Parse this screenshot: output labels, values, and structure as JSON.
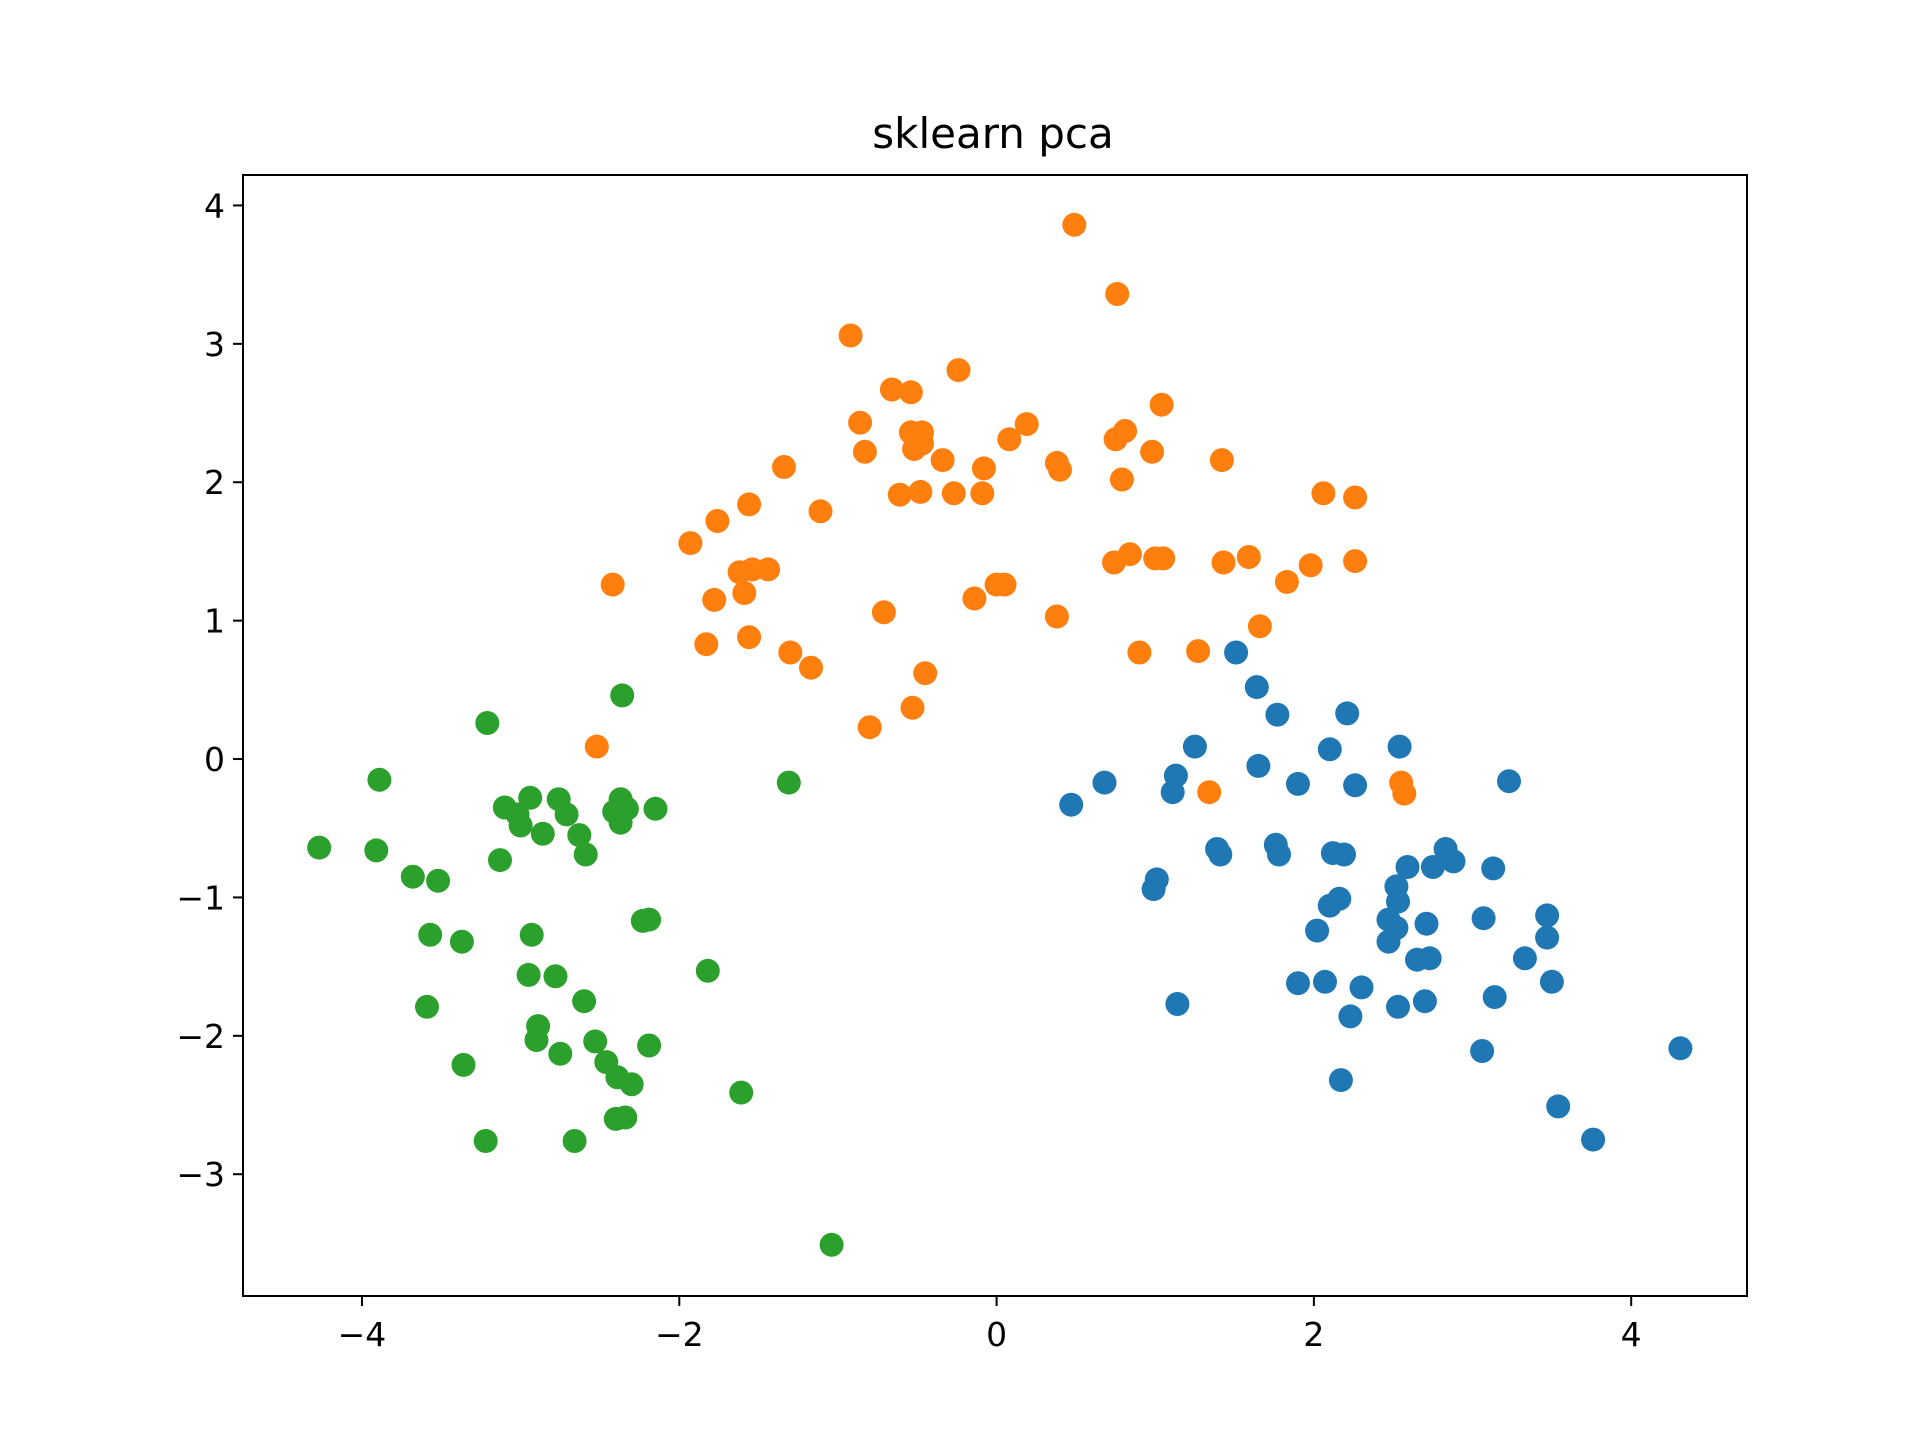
{
  "chart_data": {
    "type": "scatter",
    "title": "sklearn pca",
    "xlabel": "",
    "ylabel": "",
    "xlim": [
      -4.75,
      4.73
    ],
    "ylim": [
      -3.88,
      4.22
    ],
    "grid": false,
    "x_ticks": [
      -4,
      -2,
      0,
      2,
      4
    ],
    "y_ticks": [
      -3,
      -2,
      -1,
      0,
      1,
      2,
      3,
      4
    ],
    "x_tick_labels": [
      "−4",
      "−2",
      "0",
      "2",
      "4"
    ],
    "y_tick_labels": [
      "−3",
      "−2",
      "−1",
      "0",
      "1",
      "2",
      "3",
      "4"
    ],
    "series": [
      {
        "color": "#1f77b4",
        "points": [
          [
            1.51,
            0.77
          ],
          [
            1.64,
            0.52
          ],
          [
            1.77,
            0.32
          ],
          [
            2.21,
            0.33
          ],
          [
            2.54,
            0.09
          ],
          [
            2.1,
            0.07
          ],
          [
            1.25,
            0.09
          ],
          [
            1.65,
            -0.05
          ],
          [
            1.13,
            -0.12
          ],
          [
            1.9,
            -0.18
          ],
          [
            2.26,
            -0.19
          ],
          [
            3.23,
            -0.16
          ],
          [
            0.68,
            -0.17
          ],
          [
            1.11,
            -0.24
          ],
          [
            0.47,
            -0.33
          ],
          [
            1.39,
            -0.65
          ],
          [
            1.41,
            -0.69
          ],
          [
            1.76,
            -0.62
          ],
          [
            1.78,
            -0.69
          ],
          [
            2.12,
            -0.68
          ],
          [
            2.19,
            -0.69
          ],
          [
            2.59,
            -0.78
          ],
          [
            2.75,
            -0.78
          ],
          [
            2.83,
            -0.65
          ],
          [
            2.88,
            -0.74
          ],
          [
            3.13,
            -0.79
          ],
          [
            1.01,
            -0.87
          ],
          [
            0.99,
            -0.94
          ],
          [
            2.52,
            -0.92
          ],
          [
            2.53,
            -1.03
          ],
          [
            2.16,
            -1.01
          ],
          [
            2.1,
            -1.06
          ],
          [
            2.47,
            -1.16
          ],
          [
            2.52,
            -1.22
          ],
          [
            2.47,
            -1.32
          ],
          [
            2.71,
            -1.19
          ],
          [
            3.07,
            -1.15
          ],
          [
            3.47,
            -1.13
          ],
          [
            3.47,
            -1.29
          ],
          [
            2.02,
            -1.24
          ],
          [
            2.65,
            -1.45
          ],
          [
            2.73,
            -1.44
          ],
          [
            3.33,
            -1.44
          ],
          [
            1.9,
            -1.62
          ],
          [
            2.07,
            -1.61
          ],
          [
            2.3,
            -1.65
          ],
          [
            2.23,
            -1.86
          ],
          [
            2.53,
            -1.79
          ],
          [
            2.7,
            -1.75
          ],
          [
            3.14,
            -1.72
          ],
          [
            3.5,
            -1.61
          ],
          [
            1.14,
            -1.77
          ],
          [
            3.06,
            -2.11
          ],
          [
            2.17,
            -2.32
          ],
          [
            4.31,
            -2.09
          ],
          [
            3.54,
            -2.51
          ],
          [
            3.76,
            -2.75
          ]
        ]
      },
      {
        "color": "#ff7f0e",
        "points": [
          [
            0.49,
            3.86
          ],
          [
            0.76,
            3.36
          ],
          [
            -0.92,
            3.06
          ],
          [
            -0.24,
            2.81
          ],
          [
            -0.66,
            2.67
          ],
          [
            -0.54,
            2.65
          ],
          [
            1.04,
            2.56
          ],
          [
            -0.86,
            2.43
          ],
          [
            0.19,
            2.42
          ],
          [
            -0.54,
            2.36
          ],
          [
            -0.47,
            2.36
          ],
          [
            0.81,
            2.37
          ],
          [
            0.75,
            2.31
          ],
          [
            -0.47,
            2.28
          ],
          [
            -0.52,
            2.24
          ],
          [
            0.08,
            2.31
          ],
          [
            -0.83,
            2.22
          ],
          [
            0.98,
            2.22
          ],
          [
            -0.34,
            2.16
          ],
          [
            0.38,
            2.14
          ],
          [
            1.42,
            2.16
          ],
          [
            -0.08,
            2.1
          ],
          [
            -1.34,
            2.11
          ],
          [
            0.4,
            2.09
          ],
          [
            0.79,
            2.02
          ],
          [
            -0.61,
            1.91
          ],
          [
            -0.48,
            1.93
          ],
          [
            -0.27,
            1.92
          ],
          [
            -0.09,
            1.92
          ],
          [
            2.06,
            1.92
          ],
          [
            2.26,
            1.89
          ],
          [
            -1.56,
            1.84
          ],
          [
            -1.11,
            1.79
          ],
          [
            -1.76,
            1.72
          ],
          [
            -1.93,
            1.56
          ],
          [
            -1.62,
            1.35
          ],
          [
            -1.54,
            1.37
          ],
          [
            -1.44,
            1.37
          ],
          [
            0.84,
            1.48
          ],
          [
            1.0,
            1.45
          ],
          [
            1.05,
            1.45
          ],
          [
            0.74,
            1.42
          ],
          [
            1.43,
            1.42
          ],
          [
            1.59,
            1.46
          ],
          [
            1.98,
            1.4
          ],
          [
            2.26,
            1.43
          ],
          [
            -2.42,
            1.26
          ],
          [
            -1.59,
            1.2
          ],
          [
            0.0,
            1.26
          ],
          [
            0.05,
            1.26
          ],
          [
            -1.78,
            1.15
          ],
          [
            -0.14,
            1.16
          ],
          [
            1.83,
            1.28
          ],
          [
            -0.71,
            1.06
          ],
          [
            0.38,
            1.03
          ],
          [
            1.66,
            0.96
          ],
          [
            -1.83,
            0.83
          ],
          [
            -1.56,
            0.88
          ],
          [
            -1.3,
            0.77
          ],
          [
            0.9,
            0.77
          ],
          [
            1.27,
            0.78
          ],
          [
            -1.17,
            0.66
          ],
          [
            -0.45,
            0.62
          ],
          [
            -0.53,
            0.37
          ],
          [
            -0.8,
            0.23
          ],
          [
            -2.52,
            0.09
          ],
          [
            1.34,
            -0.24
          ],
          [
            2.55,
            -0.17
          ],
          [
            2.57,
            -0.25
          ]
        ]
      },
      {
        "color": "#2ca02c",
        "points": [
          [
            -2.36,
            0.46
          ],
          [
            -3.21,
            0.26
          ],
          [
            -3.89,
            -0.15
          ],
          [
            -1.31,
            -0.17
          ],
          [
            -2.94,
            -0.28
          ],
          [
            -2.76,
            -0.29
          ],
          [
            -2.37,
            -0.29
          ],
          [
            -2.35,
            -0.34
          ],
          [
            -3.1,
            -0.35
          ],
          [
            -3.02,
            -0.4
          ],
          [
            -2.71,
            -0.4
          ],
          [
            -2.41,
            -0.38
          ],
          [
            -2.33,
            -0.36
          ],
          [
            -2.15,
            -0.36
          ],
          [
            -2.37,
            -0.46
          ],
          [
            -3.0,
            -0.48
          ],
          [
            -2.86,
            -0.54
          ],
          [
            -2.63,
            -0.55
          ],
          [
            -2.59,
            -0.69
          ],
          [
            -4.27,
            -0.64
          ],
          [
            -3.91,
            -0.66
          ],
          [
            -3.13,
            -0.73
          ],
          [
            -3.68,
            -0.85
          ],
          [
            -3.52,
            -0.88
          ],
          [
            -2.23,
            -1.17
          ],
          [
            -2.19,
            -1.16
          ],
          [
            -3.57,
            -1.27
          ],
          [
            -3.37,
            -1.32
          ],
          [
            -2.93,
            -1.27
          ],
          [
            -1.82,
            -1.53
          ],
          [
            -2.95,
            -1.56
          ],
          [
            -2.78,
            -1.57
          ],
          [
            -3.59,
            -1.79
          ],
          [
            -2.6,
            -1.75
          ],
          [
            -2.89,
            -1.93
          ],
          [
            -2.9,
            -2.03
          ],
          [
            -2.53,
            -2.04
          ],
          [
            -2.75,
            -2.13
          ],
          [
            -2.19,
            -2.07
          ],
          [
            -2.46,
            -2.19
          ],
          [
            -2.39,
            -2.3
          ],
          [
            -2.3,
            -2.35
          ],
          [
            -3.36,
            -2.21
          ],
          [
            -1.61,
            -2.41
          ],
          [
            -2.4,
            -2.6
          ],
          [
            -2.34,
            -2.59
          ],
          [
            -3.22,
            -2.76
          ],
          [
            -2.66,
            -2.76
          ],
          [
            -1.04,
            -3.51
          ]
        ]
      }
    ]
  }
}
